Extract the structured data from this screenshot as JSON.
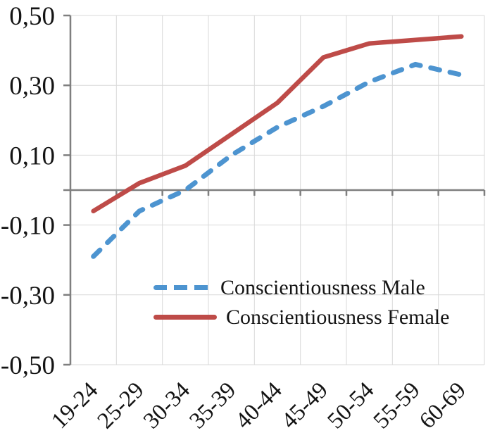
{
  "chart_data": {
    "type": "line",
    "title": "",
    "xlabel": "",
    "ylabel": "",
    "categories": [
      "19-24",
      "25-29",
      "30-34",
      "35-39",
      "40-44",
      "45-49",
      "50-54",
      "55-59",
      "60-69"
    ],
    "series": [
      {
        "name": "Conscientiousness Male",
        "color": "#4D94D0",
        "line_style": "dashed",
        "values": [
          -0.19,
          -0.06,
          0.0,
          0.1,
          0.18,
          0.24,
          0.31,
          0.36,
          0.33
        ]
      },
      {
        "name": "Conscientiousness Female",
        "color": "#BE4B48",
        "line_style": "solid",
        "values": [
          -0.06,
          0.02,
          0.07,
          0.16,
          0.25,
          0.38,
          0.42,
          0.43,
          0.44
        ]
      }
    ],
    "ylim": [
      -0.5,
      0.5
    ],
    "ytick_values": [
      0.5,
      0.3,
      0.1,
      -0.1,
      -0.3,
      -0.5
    ],
    "ytick_labels": [
      "0,50",
      "0,30",
      "0,10",
      "-0,10",
      "-0,30",
      "-0,50"
    ],
    "decimal_separator": "comma",
    "grid": true,
    "axis_color": "#7F7F7F",
    "grid_color": "#D9D9D9",
    "legend_position": "inside-lower-center"
  }
}
